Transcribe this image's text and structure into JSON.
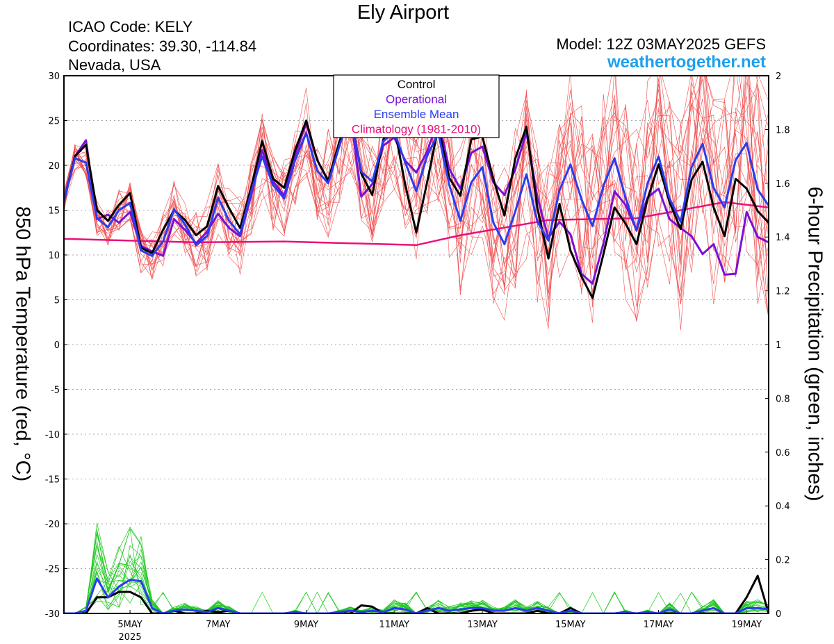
{
  "header": {
    "title": "Ely Airport",
    "icao": "ICAO Code: KELY",
    "coords": "Coordinates: 39.30, -114.84",
    "region": "Nevada, USA",
    "model": "Model: 12Z 03MAY2025 GEFS",
    "site": "weathertogether.net"
  },
  "axes": {
    "left_label": "850 hPa Temperature (red, °C)",
    "right_label": "6-hour Precipitation (green, inches)"
  },
  "colors": {
    "control": "#000000",
    "operational": "#7a10d6",
    "ensemble_mean": "#2a3cf0",
    "climatology": "#e8107a",
    "members_temp": "#f04a4a",
    "members_precip": "#1ec81e",
    "site": "#1ea0f0"
  },
  "chart_data": {
    "type": "line",
    "title": "Ely Airport",
    "x_unit": "6-hour steps from 12Z 03MAY2025",
    "x_start": "2025-05-03 12Z",
    "x_step_hours": 6,
    "x_ticks": [
      {
        "label": "5MAY",
        "sub": "2025",
        "step": 6
      },
      {
        "label": "7MAY",
        "step": 14
      },
      {
        "label": "9MAY",
        "step": 22
      },
      {
        "label": "11MAY",
        "step": 30
      },
      {
        "label": "13MAY",
        "step": 38
      },
      {
        "label": "15MAY",
        "step": 46
      },
      {
        "label": "17MAY",
        "step": 54
      },
      {
        "label": "19MAY",
        "step": 62
      }
    ],
    "ylim_left": [
      -30,
      30
    ],
    "yticks_left": [
      30,
      25,
      20,
      15,
      10,
      5,
      0,
      -5,
      -10,
      -15,
      -20,
      -25,
      -30
    ],
    "ylim_right": [
      0,
      2
    ],
    "yticks_right": [
      "2",
      "1.8",
      "1.6",
      "1.4",
      "1.2",
      "1",
      "0.8",
      "0.6",
      "0.4",
      "0.2",
      "0"
    ],
    "grid": "horizontal dotted",
    "legend": {
      "position": "top-center",
      "entries": [
        {
          "name": "Control",
          "color": "#000000"
        },
        {
          "name": "Operational",
          "color": "#7a10d6"
        },
        {
          "name": "Ensemble Mean",
          "color": "#2a3cf0"
        },
        {
          "name": "Climatology (1981-2010)",
          "color": "#e8107a"
        }
      ]
    },
    "temperature_series": [
      {
        "name": "Control",
        "values": [
          16,
          21,
          22.3,
          15,
          13.8,
          15.6,
          16.9,
          10.8,
          10.2,
          12.8,
          15,
          13.9,
          12.2,
          13.2,
          17.7,
          15.2,
          13,
          17.5,
          22.7,
          18.5,
          17.5,
          21.7,
          25,
          20.6,
          18.3,
          22.6,
          26.1,
          19.1,
          16.7,
          22.9,
          24.3,
          17.8,
          12.5,
          18.2,
          24.3,
          18.6,
          16.6,
          22.9,
          23.2,
          18.5,
          14.4,
          20.8,
          24.3,
          15.2,
          9.6,
          15.7,
          10.5,
          7.6,
          5.2,
          10.1,
          15.3,
          13.5,
          11.2,
          16.2,
          20.1,
          15.9,
          12.9,
          18.4,
          20.4,
          15.3,
          12.1,
          18.5,
          17.4,
          14.9,
          13.6
        ]
      },
      {
        "name": "Operational",
        "values": [
          16,
          21,
          22.8,
          14,
          14.5,
          13.6,
          14.8,
          11,
          10.4,
          9.9,
          14,
          12.8,
          11.3,
          12.6,
          14.6,
          13,
          12.1,
          16.6,
          21.7,
          18.2,
          16.6,
          21.2,
          24.7,
          20.6,
          18.2,
          22.5,
          26,
          16.5,
          17.9,
          22.2,
          23.1,
          20.5,
          19.2,
          21.6,
          25.1,
          19.6,
          17.4,
          21.4,
          22.1,
          18.1,
          16.7,
          19.6,
          23.7,
          16.4,
          11.9,
          13.7,
          12.3,
          7.9,
          6.8,
          11.3,
          17.1,
          15.6,
          12.8,
          16.4,
          17.4,
          14,
          13,
          12.1,
          10.1,
          11.2,
          7.8,
          7.9,
          14.8,
          12,
          11.4
        ]
      },
      {
        "name": "Ensemble Mean",
        "values": [
          16,
          20.8,
          20.3,
          14.1,
          13.1,
          15,
          15.8,
          10.5,
          9.9,
          11.5,
          15.1,
          13.4,
          11.1,
          12.1,
          16.4,
          13.8,
          12.3,
          17,
          21,
          17.8,
          16.3,
          20.6,
          23.6,
          19.4,
          18,
          22.1,
          25.7,
          19.3,
          18.2,
          22.7,
          23.7,
          20.3,
          17.1,
          21.1,
          23.6,
          17.8,
          13.8,
          18.1,
          19.8,
          13.6,
          11.2,
          14.9,
          19,
          13.7,
          11.6,
          17.2,
          20.1,
          16.2,
          13.2,
          17.7,
          20.8,
          16.4,
          12.7,
          18,
          21,
          16.3,
          13.7,
          19.8,
          22.4,
          17.5,
          15.3,
          20.6,
          22.5,
          17.3,
          15.5
        ]
      }
    ],
    "climatology": {
      "name": "Climatology (1981-2010)",
      "x": [
        0,
        12,
        20,
        32,
        36,
        44,
        52,
        60,
        64
      ],
      "values": [
        11.8,
        11.4,
        11.5,
        11.1,
        12.2,
        13.9,
        14.1,
        15.9,
        15.3
      ]
    },
    "precipitation_series": [
      {
        "name": "Control",
        "values": [
          0,
          0,
          0,
          0.06,
          0.06,
          0.08,
          0.08,
          0.06,
          0,
          0,
          0.01,
          0,
          0,
          0.01,
          0.005,
          0.01,
          0,
          0,
          0,
          0,
          0,
          0,
          0,
          0,
          0,
          0,
          0,
          0.03,
          0.025,
          0,
          0,
          0,
          0,
          0.02,
          0,
          0,
          0,
          0.01,
          0.015,
          0,
          0,
          0,
          0,
          0.01,
          0,
          0,
          0.02,
          0,
          0,
          0,
          0,
          0,
          0,
          0,
          0,
          0,
          0,
          0,
          0,
          0,
          0,
          0,
          0.06,
          0.14,
          0
        ]
      },
      {
        "name": "Ensemble Mean",
        "values": [
          0,
          0,
          0.01,
          0.13,
          0.06,
          0.1,
          0.125,
          0.12,
          0.02,
          0,
          0.01,
          0.015,
          0.01,
          0.005,
          0.02,
          0.01,
          0,
          0,
          0,
          0,
          0,
          0.005,
          0,
          0,
          0,
          0.005,
          0.01,
          0.005,
          0.01,
          0.005,
          0.02,
          0.015,
          0,
          0.01,
          0.02,
          0.01,
          0.015,
          0.02,
          0.02,
          0.01,
          0.01,
          0.02,
          0.01,
          0.02,
          0.01,
          0,
          0.01,
          0,
          0,
          0,
          0,
          0.005,
          0,
          0.005,
          0,
          0.015,
          0,
          0,
          0.01,
          0.02,
          0,
          0,
          0.02,
          0.02,
          0.015
        ]
      }
    ]
  }
}
